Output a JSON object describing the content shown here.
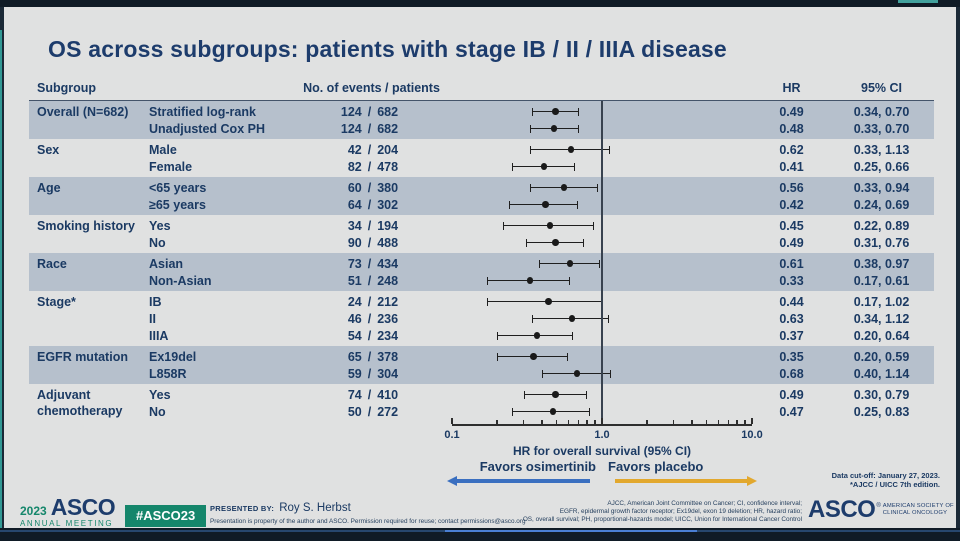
{
  "title": "OS across subgroups: patients with stage IB / II / IIIA disease",
  "colors": {
    "navy_text": "#1b3a63",
    "band_shade": "#b6c0cc",
    "arrow_blue": "#3a6fc0",
    "arrow_yellow": "#e2a82e",
    "green": "#15866b",
    "slide_bg": "#e0e1e1"
  },
  "table_headers": {
    "subgroup": "Subgroup",
    "events": "No. of events  /  patients",
    "hr": "HR",
    "ci": "95% CI"
  },
  "chart_data": {
    "type": "scatter",
    "subtype": "forest-plot",
    "title": "OS across subgroups: patients with stage IB / II / IIIA disease",
    "xlabel": "HR for overall survival (95% CI)",
    "xscale": "log",
    "xlim": [
      0.1,
      10.0
    ],
    "x_tick_labels": [
      "0.1",
      "1.0",
      "10.0"
    ],
    "reference_line": 1.0,
    "grid": false,
    "groups": [
      {
        "label": "Overall (N=682)",
        "shaded": true,
        "rows": [
          {
            "name": "Stratified log-rank",
            "events": "124",
            "patients": "682",
            "hr": 0.49,
            "ci_low": 0.34,
            "ci_high": 0.7,
            "hr_text": "0.49",
            "ci_text": "0.34, 0.70"
          },
          {
            "name": "Unadjusted Cox PH",
            "events": "124",
            "patients": "682",
            "hr": 0.48,
            "ci_low": 0.33,
            "ci_high": 0.7,
            "hr_text": "0.48",
            "ci_text": "0.33, 0.70"
          }
        ]
      },
      {
        "label": "Sex",
        "shaded": false,
        "rows": [
          {
            "name": "Male",
            "events": "42",
            "patients": "204",
            "hr": 0.62,
            "ci_low": 0.33,
            "ci_high": 1.13,
            "hr_text": "0.62",
            "ci_text": "0.33, 1.13"
          },
          {
            "name": "Female",
            "events": "82",
            "patients": "478",
            "hr": 0.41,
            "ci_low": 0.25,
            "ci_high": 0.66,
            "hr_text": "0.41",
            "ci_text": "0.25, 0.66"
          }
        ]
      },
      {
        "label": "Age",
        "shaded": true,
        "rows": [
          {
            "name": "<65 years",
            "events": "60",
            "patients": "380",
            "hr": 0.56,
            "ci_low": 0.33,
            "ci_high": 0.94,
            "hr_text": "0.56",
            "ci_text": "0.33, 0.94"
          },
          {
            "name": "≥65 years",
            "events": "64",
            "patients": "302",
            "hr": 0.42,
            "ci_low": 0.24,
            "ci_high": 0.69,
            "hr_text": "0.42",
            "ci_text": "0.24, 0.69"
          }
        ]
      },
      {
        "label": "Smoking history",
        "shaded": false,
        "rows": [
          {
            "name": "Yes",
            "events": "34",
            "patients": "194",
            "hr": 0.45,
            "ci_low": 0.22,
            "ci_high": 0.89,
            "hr_text": "0.45",
            "ci_text": "0.22, 0.89"
          },
          {
            "name": "No",
            "events": "90",
            "patients": "488",
            "hr": 0.49,
            "ci_low": 0.31,
            "ci_high": 0.76,
            "hr_text": "0.49",
            "ci_text": "0.31, 0.76"
          }
        ]
      },
      {
        "label": "Race",
        "shaded": true,
        "rows": [
          {
            "name": "Asian",
            "events": "73",
            "patients": "434",
            "hr": 0.61,
            "ci_low": 0.38,
            "ci_high": 0.97,
            "hr_text": "0.61",
            "ci_text": "0.38, 0.97"
          },
          {
            "name": "Non-Asian",
            "events": "51",
            "patients": "248",
            "hr": 0.33,
            "ci_low": 0.17,
            "ci_high": 0.61,
            "hr_text": "0.33",
            "ci_text": "0.17, 0.61"
          }
        ]
      },
      {
        "label": "Stage*",
        "shaded": false,
        "rows": [
          {
            "name": "IB",
            "events": "24",
            "patients": "212",
            "hr": 0.44,
            "ci_low": 0.17,
            "ci_high": 1.02,
            "hr_text": "0.44",
            "ci_text": "0.17, 1.02"
          },
          {
            "name": "II",
            "events": "46",
            "patients": "236",
            "hr": 0.63,
            "ci_low": 0.34,
            "ci_high": 1.12,
            "hr_text": "0.63",
            "ci_text": "0.34, 1.12"
          },
          {
            "name": "IIIA",
            "events": "54",
            "patients": "234",
            "hr": 0.37,
            "ci_low": 0.2,
            "ci_high": 0.64,
            "hr_text": "0.37",
            "ci_text": "0.20, 0.64"
          }
        ]
      },
      {
        "label": "EGFR mutation",
        "shaded": true,
        "rows": [
          {
            "name": "Ex19del",
            "events": "65",
            "patients": "378",
            "hr": 0.35,
            "ci_low": 0.2,
            "ci_high": 0.59,
            "hr_text": "0.35",
            "ci_text": "0.20, 0.59"
          },
          {
            "name": "L858R",
            "events": "59",
            "patients": "304",
            "hr": 0.68,
            "ci_low": 0.4,
            "ci_high": 1.14,
            "hr_text": "0.68",
            "ci_text": "0.40, 1.14"
          }
        ]
      },
      {
        "label": "Adjuvant chemotherapy",
        "shaded": false,
        "rows": [
          {
            "name": "Yes",
            "events": "74",
            "patients": "410",
            "hr": 0.49,
            "ci_low": 0.3,
            "ci_high": 0.79,
            "hr_text": "0.49",
            "ci_text": "0.30, 0.79"
          },
          {
            "name": "No",
            "events": "50",
            "patients": "272",
            "hr": 0.47,
            "ci_low": 0.25,
            "ci_high": 0.83,
            "hr_text": "0.47",
            "ci_text": "0.25, 0.83"
          }
        ]
      }
    ]
  },
  "axis": {
    "label": "HR for overall survival (95% CI)",
    "favors_left": "Favors osimertinib",
    "favors_right": "Favors placebo"
  },
  "notes": {
    "cutoff": "Data cut-off: January 27, 2023.",
    "edition": "*AJCC / UICC 7th edition."
  },
  "footer": {
    "meeting_year": "2023",
    "meeting_name": "ASCO",
    "meeting_sub": "ANNUAL MEETING",
    "hashtag": "#ASCO23",
    "presented_by_label": "PRESENTED BY:",
    "presenter": "Roy S. Herbst",
    "disclaimer": "Presentation is property of the author and ASCO. Permission required for reuse; contact permissions@asco.org",
    "abbrev_lines": [
      "AJCC, American Joint Committee on Cancer; CI, confidence interval;",
      "EGFR, epidermal growth factor receptor; Ex19del, exon 19 deletion; HR, hazard ratio;",
      "OS, overall survival; PH, proportional-hazards model; UICC, Union for International Cancer Control"
    ],
    "org_name": "ASCO",
    "org_reg": "®",
    "org_tag_lines": [
      "AMERICAN SOCIETY OF",
      "CLINICAL ONCOLOGY"
    ],
    "org_slogan": "KNOWLEDGE CONQUERS CANCER"
  }
}
